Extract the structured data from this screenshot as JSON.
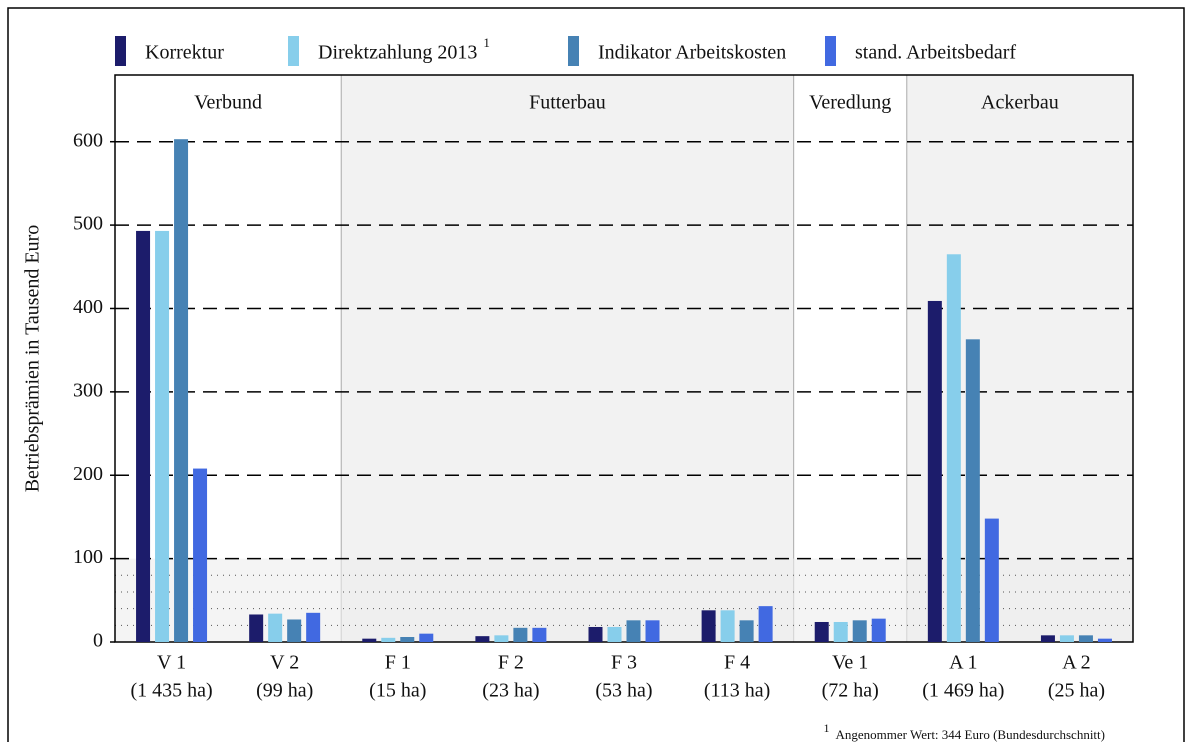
{
  "chart_data": {
    "type": "bar",
    "y_label": "Betriebsprämien in Tausend Euro",
    "categories": [
      "V 1",
      "V 2",
      "F 1",
      "F 2",
      "F 3",
      "F 4",
      "Ve 1",
      "A 1",
      "A 2"
    ],
    "category_sublabels": [
      "(1 435 ha)",
      "(99 ha)",
      "(15 ha)",
      "(23 ha)",
      "(53 ha)",
      "(113 ha)",
      "(72 ha)",
      "(1 469 ha)",
      "(25 ha)"
    ],
    "groups": [
      {
        "label": "Verbund",
        "count": 2,
        "shaded": false
      },
      {
        "label": "Futterbau",
        "count": 4,
        "shaded": true
      },
      {
        "label": "Veredlung",
        "count": 1,
        "shaded": false
      },
      {
        "label": "Ackerbau",
        "count": 2,
        "shaded": true
      }
    ],
    "series": [
      {
        "name": "Korrektur",
        "color": "#1c1c6b",
        "values": [
          493,
          33,
          4,
          7,
          18,
          38,
          24,
          409,
          8
        ]
      },
      {
        "name": "Direktzahlung 2013",
        "superscript": "1",
        "color": "#87ceeb",
        "values": [
          493,
          34,
          5,
          8,
          18,
          38,
          24,
          465,
          8
        ]
      },
      {
        "name": "Indikator Arbeitskosten",
        "color": "#4682b4",
        "values": [
          603,
          27,
          6,
          17,
          26,
          26,
          26,
          363,
          8
        ]
      },
      {
        "name": "stand. Arbeitsbedarf",
        "color": "#4169e1",
        "values": [
          208,
          35,
          10,
          17,
          26,
          43,
          28,
          148,
          4
        ]
      }
    ],
    "ylim": [
      0,
      680
    ],
    "yticks": [
      0,
      100,
      200,
      300,
      400,
      500,
      600
    ],
    "minor_yticks": [
      20,
      40,
      60,
      80
    ],
    "grid": true,
    "footnote": {
      "marker": "1",
      "text": "Angenommer Wert: 344 Euro (Bundesdurchschnitt)"
    }
  }
}
